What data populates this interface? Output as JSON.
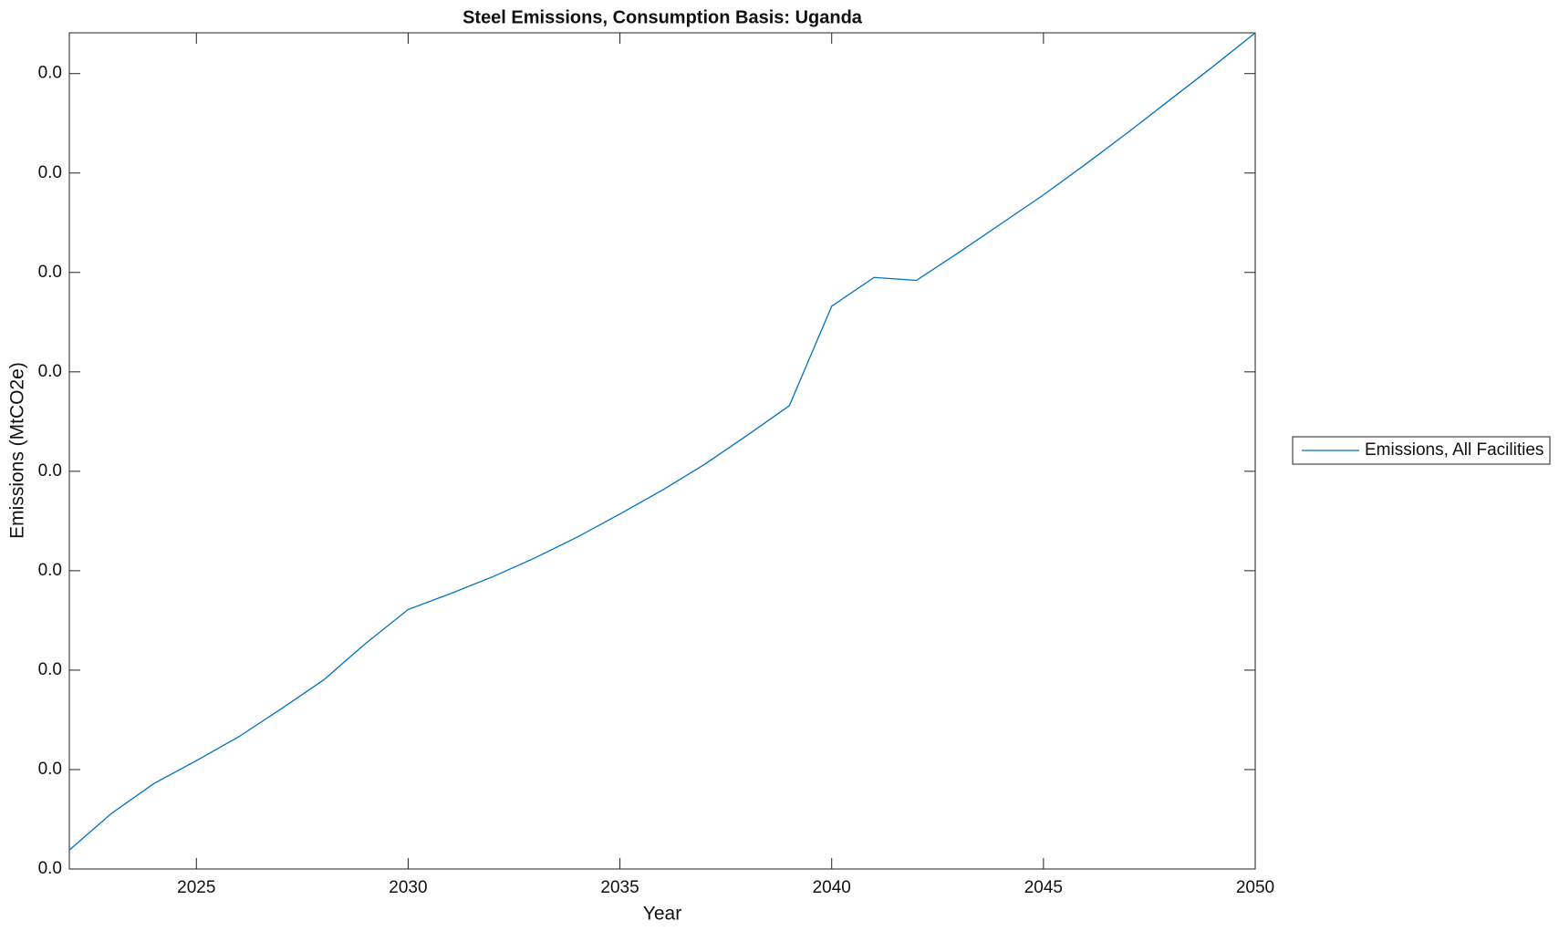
{
  "chart_data": {
    "type": "line",
    "title": "Steel Emissions, Consumption Basis: Uganda",
    "x_label": "Year",
    "y_label": "Emissions (MtCO2e)",
    "x": [
      2022,
      2023,
      2024,
      2025,
      2026,
      2027,
      2028,
      2029,
      2030,
      2031,
      2032,
      2033,
      2034,
      2035,
      2036,
      2037,
      2038,
      2039,
      2040,
      2041,
      2042,
      2043,
      2044,
      2045,
      2046,
      2047,
      2048,
      2049,
      2050
    ],
    "series": [
      {
        "name": "Emissions, All Facilities",
        "color": "#0072bd",
        "values": [
          0.00019,
          0.00056,
          0.00086,
          0.00109,
          0.00133,
          0.00161,
          0.0019,
          0.00227,
          0.00261,
          0.00277,
          0.00294,
          0.00313,
          0.00334,
          0.00357,
          0.00381,
          0.00407,
          0.00436,
          0.00466,
          0.00566,
          0.00595,
          0.00592,
          0.0062,
          0.00649,
          0.00678,
          0.00709,
          0.00741,
          0.00774,
          0.00807,
          0.00841
        ]
      }
    ],
    "xlim": [
      2022,
      2050
    ],
    "xticks": [
      2025,
      2030,
      2035,
      2040,
      2045,
      2050
    ],
    "ylim": [
      0,
      0.00841
    ],
    "yticks": [
      {
        "value": 0,
        "label": "0.0"
      },
      {
        "value": 0.001,
        "label": "0.0"
      },
      {
        "value": 0.002,
        "label": "0.0"
      },
      {
        "value": 0.003,
        "label": "0.0"
      },
      {
        "value": 0.004,
        "label": "0.0"
      },
      {
        "value": 0.005,
        "label": "0.0"
      },
      {
        "value": 0.006,
        "label": "0.0"
      },
      {
        "value": 0.007,
        "label": "0.0"
      },
      {
        "value": 0.008,
        "label": "0.0"
      }
    ],
    "grid": false,
    "legend": "outside-right"
  }
}
